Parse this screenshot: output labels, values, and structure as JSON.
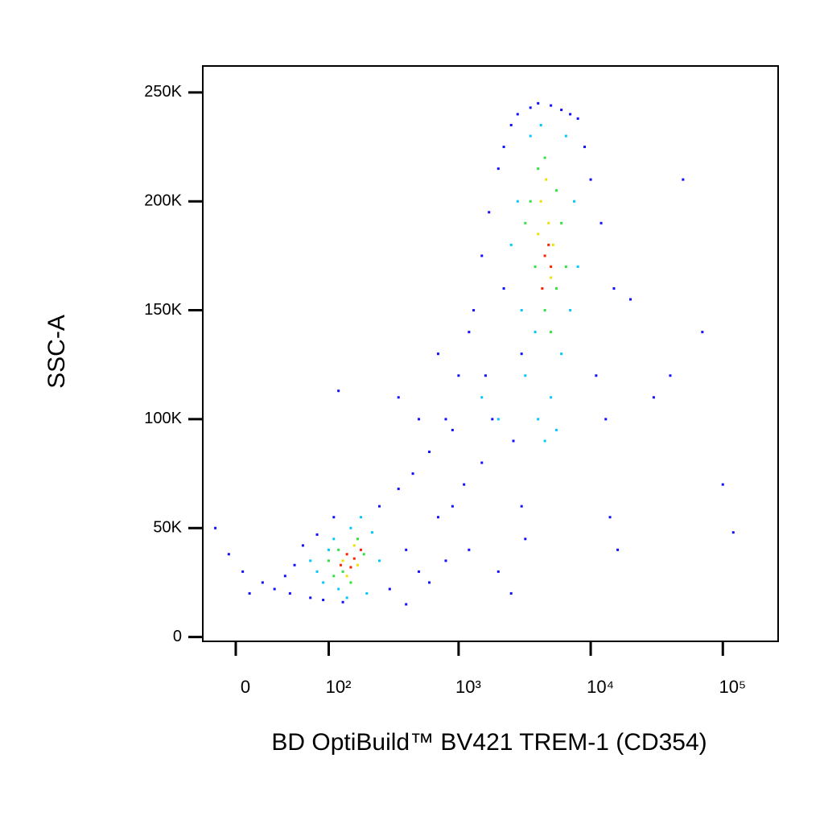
{
  "chart_data": {
    "type": "scatter",
    "xlabel": "BD OptiBuild™ BV421 TREM-1 (CD354)",
    "ylabel": "SSC-A",
    "xscale": "biexponential",
    "xlim": [
      -25,
      262144
    ],
    "ylim": [
      -2000,
      262144
    ],
    "xticks": [
      0,
      {
        "value": 100,
        "label": "10²"
      },
      {
        "value": 1000,
        "label": "10³"
      },
      {
        "value": 10000,
        "label": "10⁴"
      },
      {
        "value": 100000,
        "label": "10⁵"
      }
    ],
    "yticks": [
      0,
      {
        "value": 50000,
        "label": "50K"
      },
      {
        "value": 100000,
        "label": "100K"
      },
      {
        "value": 150000,
        "label": "150K"
      },
      {
        "value": 200000,
        "label": "200K"
      },
      {
        "value": 250000,
        "label": "250K"
      }
    ],
    "grid": false,
    "series": [
      {
        "color": "#1010ff",
        "x": [
          -15,
          -5,
          5,
          20,
          30,
          45,
          50,
          60,
          70,
          80,
          90,
          110,
          130,
          250,
          300,
          350,
          400,
          450,
          500,
          600,
          700,
          800,
          900,
          1000,
          1100,
          1200,
          1300,
          1500,
          1700,
          2000,
          2200,
          2500,
          2800,
          3000,
          3500,
          4000,
          5000,
          6000,
          7000,
          8000,
          9000,
          10000,
          12000,
          15000,
          20000,
          30000,
          40000,
          50000,
          70000,
          100000,
          120000,
          1200,
          800,
          600,
          400,
          350,
          2000,
          2500,
          3000,
          1500,
          900,
          1800,
          2200,
          11000,
          13000,
          14000,
          16000,
          1600,
          2600,
          3200,
          700,
          500,
          120,
          40,
          10
        ],
        "values": [
          50000,
          38000,
          30000,
          25000,
          22000,
          20000,
          33000,
          42000,
          18000,
          47000,
          17000,
          55000,
          16000,
          60000,
          22000,
          68000,
          40000,
          75000,
          30000,
          85000,
          55000,
          100000,
          95000,
          120000,
          70000,
          140000,
          150000,
          175000,
          195000,
          215000,
          225000,
          235000,
          240000,
          60000,
          243000,
          245000,
          244000,
          242000,
          240000,
          238000,
          225000,
          210000,
          190000,
          160000,
          155000,
          110000,
          120000,
          210000,
          140000,
          70000,
          48000,
          40000,
          35000,
          25000,
          15000,
          110000,
          30000,
          20000,
          130000,
          80000,
          60000,
          100000,
          160000,
          120000,
          100000,
          55000,
          40000,
          120000,
          90000,
          45000,
          130000,
          100000,
          113000,
          28000,
          20000
        ]
      },
      {
        "color": "#00c8ff",
        "x": [
          80,
          90,
          100,
          110,
          120,
          150,
          180,
          200,
          220,
          250,
          70,
          140,
          2500,
          2800,
          3000,
          3200,
          3500,
          4000,
          4500,
          5000,
          6000,
          7000,
          7500,
          8000,
          6500,
          3800,
          5500,
          4200,
          1500,
          2000
        ],
        "values": [
          30000,
          25000,
          40000,
          45000,
          22000,
          50000,
          55000,
          20000,
          48000,
          35000,
          35000,
          18000,
          180000,
          200000,
          150000,
          120000,
          230000,
          100000,
          90000,
          110000,
          130000,
          150000,
          200000,
          170000,
          230000,
          140000,
          95000,
          235000,
          110000,
          100000
        ]
      },
      {
        "color": "#30e040",
        "x": [
          100,
          120,
          130,
          170,
          190,
          110,
          150,
          3500,
          4000,
          4500,
          5500,
          6000,
          6500,
          4500,
          5000,
          3800,
          3200,
          5500
        ],
        "values": [
          35000,
          40000,
          30000,
          45000,
          38000,
          28000,
          25000,
          200000,
          215000,
          220000,
          205000,
          190000,
          170000,
          150000,
          140000,
          170000,
          190000,
          160000
        ]
      },
      {
        "color": "#f0e000",
        "x": [
          130,
          160,
          140,
          170,
          4200,
          4800,
          5200,
          4000,
          5000,
          4600
        ],
        "values": [
          35000,
          42000,
          28000,
          33000,
          200000,
          190000,
          180000,
          185000,
          165000,
          210000
        ]
      },
      {
        "color": "#ff2000",
        "x": [
          140,
          150,
          160,
          125,
          180,
          4500,
          4800,
          5000,
          4300
        ],
        "values": [
          38000,
          32000,
          36000,
          33000,
          40000,
          175000,
          180000,
          170000,
          160000
        ]
      }
    ]
  }
}
